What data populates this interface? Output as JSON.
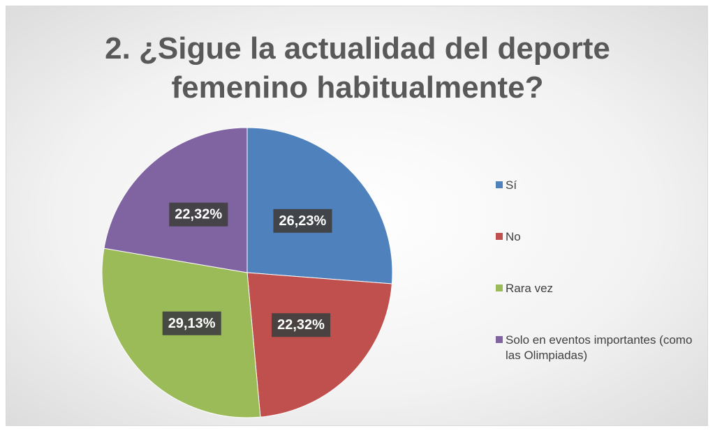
{
  "chart_data": {
    "type": "pie",
    "title": "2. ¿Sigue la actualidad del deporte femenino habitualmente?",
    "categories": [
      "Sí",
      "No",
      "Rara vez",
      "Solo en eventos importantes (como las Olimpiadas)"
    ],
    "values": [
      26.23,
      22.32,
      29.13,
      22.32
    ],
    "value_labels": [
      "26,23%",
      "22,32%",
      "29,13%",
      "22,32%"
    ],
    "colors": [
      "#4f81bd",
      "#c0504d",
      "#9bbb59",
      "#8064a2"
    ],
    "legend": "right"
  }
}
